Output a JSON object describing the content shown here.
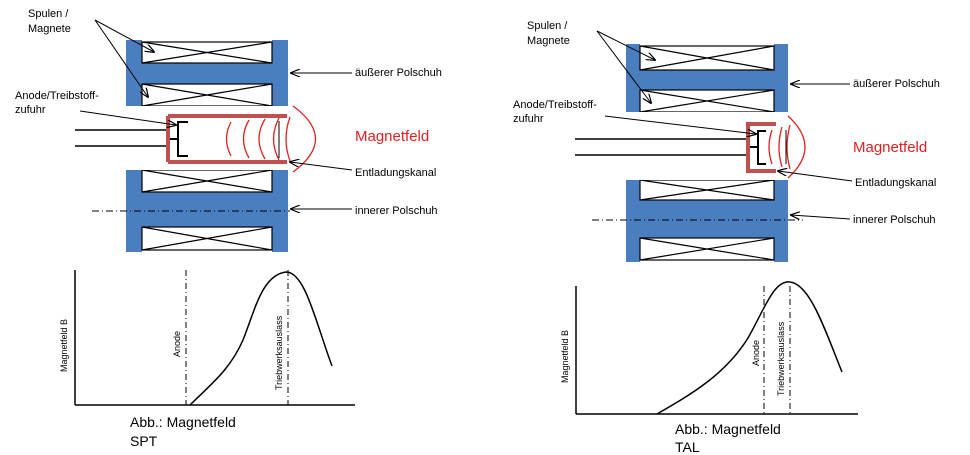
{
  "colors": {
    "pole_blue": "#4a7ebf",
    "channel_red": "#c0504d",
    "field_red": "#e02020",
    "line": "#000000"
  },
  "left": {
    "coils_label": "Spulen / Magnete",
    "anode_label": "Anode/Treibstoff-zufuhr",
    "outer_pole_label": "äußerer Polschuh",
    "field_label": "Magnetfeld",
    "channel_label": "Entladungskanal",
    "inner_pole_label": "innerer Polschuh",
    "plot_ylabel": "Magnetfeld B",
    "plot_anode": "Anode",
    "plot_exit": "Triebwerksauslass",
    "caption_line1": "Abb.: Magnetfeld",
    "caption_line2": "SPT"
  },
  "right": {
    "coils_label": "Spulen / Magnete",
    "anode_label": "Anode/Treibstoff-zufuhr",
    "outer_pole_label": "äußerer Polschuh",
    "field_label": "Magnetfeld",
    "channel_label": "Entladungskanal",
    "inner_pole_label": "innerer Polschuh",
    "plot_ylabel": "Magnetfeld B",
    "plot_anode": "Anode",
    "plot_exit": "Triebwerksauslass",
    "caption_line1": "Abb.: Magnetfeld",
    "caption_line2": "TAL"
  }
}
